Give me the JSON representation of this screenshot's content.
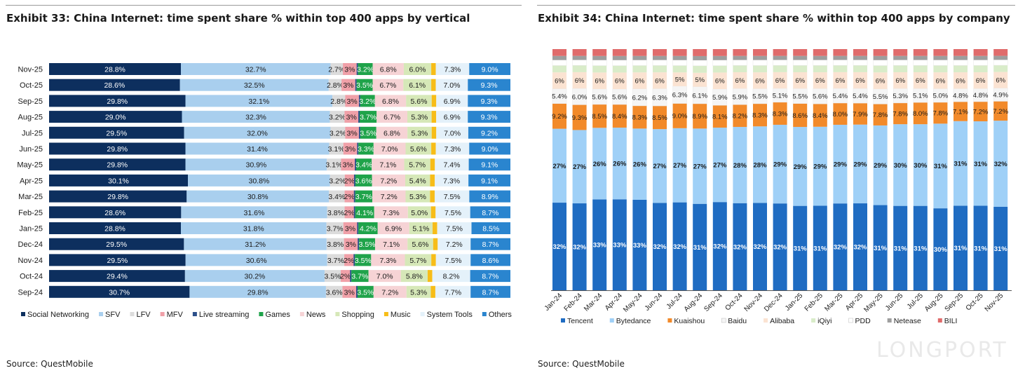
{
  "exhibit33": {
    "title": "Exhibit 33: China Internet: time spent share % within top 400 apps by vertical",
    "source": "Source: QuestMobile"
  },
  "exhibit34": {
    "title": "Exhibit 34: China Internet: time spent share % within top 400 apps by company",
    "source": "Source: QuestMobile"
  },
  "watermark": "LONGPORT",
  "chart_data": [
    {
      "type": "bar",
      "orientation": "horizontal",
      "stacked": true,
      "title": "",
      "xlabel": "",
      "ylabel": "",
      "xlim": [
        0,
        100
      ],
      "grid": false,
      "legend": "bottom",
      "categories": [
        "Nov-25",
        "Oct-25",
        "Sep-25",
        "Aug-25",
        "Jul-25",
        "Jun-25",
        "May-25",
        "Apr-25",
        "Mar-25",
        "Feb-25",
        "Jan-25",
        "Dec-24",
        "Nov-24",
        "Oct-24",
        "Sep-24"
      ],
      "series": [
        {
          "name": "Social Networking",
          "color": "#0d2f5e",
          "label_color": "#ffffff",
          "values": [
            28.8,
            28.6,
            29.8,
            29.0,
            29.5,
            29.8,
            29.8,
            30.1,
            29.8,
            28.6,
            28.8,
            29.5,
            29.5,
            29.4,
            30.7
          ],
          "labels": [
            "28.8%",
            "28.6%",
            "29.8%",
            "29.0%",
            "29.5%",
            "29.8%",
            "29.8%",
            "30.1%",
            "29.8%",
            "28.6%",
            "28.8%",
            "29.5%",
            "29.5%",
            "29.4%",
            "30.7%"
          ]
        },
        {
          "name": "SFV",
          "color": "#a9cfee",
          "label_color": "#1a1a1a",
          "values": [
            32.7,
            32.5,
            32.1,
            32.3,
            32.0,
            31.4,
            30.9,
            30.8,
            30.8,
            31.6,
            31.8,
            31.2,
            30.6,
            30.2,
            29.8
          ],
          "labels": [
            "32.7%",
            "32.5%",
            "32.1%",
            "32.3%",
            "32.0%",
            "31.4%",
            "30.9%",
            "30.8%",
            "30.8%",
            "31.6%",
            "31.8%",
            "31.2%",
            "30.6%",
            "30.2%",
            "29.8%"
          ]
        },
        {
          "name": "LFV",
          "color": "#dcdcdc",
          "label_color": "#1a1a1a",
          "values": [
            2.7,
            2.8,
            2.8,
            3.2,
            3.2,
            3.1,
            3.1,
            3.2,
            3.4,
            3.8,
            3.7,
            3.8,
            3.7,
            3.5,
            3.6
          ],
          "labels": [
            "2.7%",
            "2.8%",
            "2.8%",
            "3.2%",
            "3.2%",
            "3.1%",
            "3.1%",
            "3.2%",
            "3.4%",
            "3.8%",
            "3.7%",
            "3.8%",
            "3.7%",
            "3.5%",
            "3.6%"
          ]
        },
        {
          "name": "MFV",
          "color": "#f0a0a8",
          "label_color": "#1a1a1a",
          "values": [
            3,
            3,
            3,
            3,
            3,
            3,
            3,
            2,
            2,
            2,
            3,
            3,
            2,
            2,
            3
          ],
          "labels": [
            "3%",
            "3%",
            "3%",
            "3%",
            "3%",
            "3%",
            "3%",
            "2%",
            "2%",
            "2%",
            "3%",
            "3%",
            "2%",
            "2%",
            "3%"
          ]
        },
        {
          "name": "Live streaming",
          "color": "#2b4f8a",
          "label_color": "#ffffff",
          "values": [
            0.3,
            0.3,
            0.3,
            0.3,
            0.3,
            0.3,
            0.3,
            0.3,
            0.3,
            0.3,
            0.3,
            0.3,
            0.3,
            0.3,
            0.3
          ],
          "labels": [
            "",
            "",
            "",
            "",
            "",
            "",
            "",
            "",
            "",
            "",
            "",
            "",
            "",
            "",
            ""
          ]
        },
        {
          "name": "Games",
          "color": "#1fa34a",
          "label_color": "#ffffff",
          "values": [
            3.2,
            3.5,
            3.2,
            3.7,
            3.5,
            3.3,
            3.4,
            3.6,
            3.7,
            4.1,
            4.2,
            3.5,
            3.5,
            3.7,
            3.5
          ],
          "labels": [
            "3.2%",
            "3.5%",
            "3.2%",
            "3.7%",
            "3.5%",
            "3.3%",
            "3.4%",
            "3.6%",
            "3.7%",
            "4.1%",
            "4.2%",
            "3.5%",
            "3.5%",
            "3.7%",
            "3.5%"
          ]
        },
        {
          "name": "News",
          "color": "#f6d3d5",
          "label_color": "#1a1a1a",
          "values": [
            6.8,
            6.7,
            6.8,
            6.7,
            6.8,
            7.0,
            7.1,
            7.2,
            7.2,
            7.3,
            6.9,
            7.1,
            7.3,
            7.0,
            7.2
          ],
          "labels": [
            "6.8%",
            "6.7%",
            "6.8%",
            "6.7%",
            "6.8%",
            "7.0%",
            "7.1%",
            "7.2%",
            "7.2%",
            "7.3%",
            "6.9%",
            "7.1%",
            "7.3%",
            "7.0%",
            "7.2%"
          ]
        },
        {
          "name": "Shopping",
          "color": "#d6e8b8",
          "label_color": "#1a1a1a",
          "values": [
            6.0,
            6.1,
            5.6,
            5.3,
            5.3,
            5.6,
            5.7,
            5.4,
            5.3,
            5.0,
            5.1,
            5.6,
            5.7,
            5.8,
            5.3
          ],
          "labels": [
            "6.0%",
            "6.1%",
            "5.6%",
            "5.3%",
            "5.3%",
            "5.6%",
            "5.7%",
            "5.4%",
            "5.3%",
            "5.0%",
            "5.1%",
            "5.6%",
            "5.7%",
            "5.8%",
            "5.3%"
          ]
        },
        {
          "name": "Music",
          "color": "#f7bd18",
          "label_color": "#1a1a1a",
          "values": [
            1,
            1,
            1,
            1,
            1,
            1,
            1,
            1,
            1,
            1,
            1,
            1,
            1,
            1,
            1
          ],
          "labels": [
            "",
            "",
            "",
            "",
            "",
            "",
            "",
            "",
            "",
            "",
            "",
            "",
            "",
            "",
            ""
          ]
        },
        {
          "name": "System Tools",
          "color": "#e4f1fa",
          "label_color": "#1a1a1a",
          "values": [
            7.3,
            7.0,
            6.9,
            6.9,
            7.0,
            7.3,
            7.4,
            7.3,
            7.5,
            7.5,
            7.5,
            7.2,
            7.5,
            8.2,
            7.7
          ],
          "labels": [
            "7.3%",
            "7.0%",
            "6.9%",
            "6.9%",
            "7.0%",
            "7.3%",
            "7.4%",
            "7.3%",
            "7.5%",
            "7.5%",
            "7.5%",
            "7.2%",
            "7.5%",
            "8.2%",
            "7.7%"
          ]
        },
        {
          "name": "Others",
          "color": "#2a85cf",
          "label_color": "#ffffff",
          "values": [
            9.0,
            9.3,
            9.3,
            9.3,
            9.2,
            9.0,
            9.1,
            9.1,
            8.9,
            8.7,
            8.5,
            8.7,
            8.6,
            8.7,
            8.7
          ],
          "labels": [
            "9.0%",
            "9.3%",
            "9.3%",
            "9.3%",
            "9.2%",
            "9.0%",
            "9.1%",
            "9.1%",
            "8.9%",
            "8.7%",
            "8.5%",
            "8.7%",
            "8.6%",
            "8.7%",
            "8.7%"
          ]
        }
      ]
    },
    {
      "type": "bar",
      "orientation": "vertical",
      "stacked": true,
      "title": "",
      "xlabel": "",
      "ylabel": "",
      "ylim": [
        0,
        100
      ],
      "grid": false,
      "legend": "bottom",
      "categories": [
        "Jan-24",
        "Feb-24",
        "Mar-24",
        "Apr-24",
        "May-24",
        "Jun-24",
        "Jul-24",
        "Aug-24",
        "Sep-24",
        "Oct-24",
        "Nov-24",
        "Dec-24",
        "Jan-25",
        "Feb-25",
        "Mar-25",
        "Apr-25",
        "May-25",
        "Jun-25",
        "Jul-25",
        "Aug-25",
        "Sep-25",
        "Oct-25",
        "Nov-25"
      ],
      "series": [
        {
          "name": "Tencent",
          "color": "#1f6cc2",
          "label_color": "#ffffff",
          "values": [
            32,
            32,
            33,
            33,
            33,
            32,
            32,
            31,
            32,
            32,
            32,
            32,
            31,
            31,
            32,
            32,
            31,
            31,
            31,
            30,
            31,
            31,
            31
          ],
          "labels": [
            "32%",
            "32%",
            "33%",
            "33%",
            "33%",
            "32%",
            "32%",
            "31%",
            "32%",
            "32%",
            "32%",
            "32%",
            "31%",
            "31%",
            "32%",
            "32%",
            "31%",
            "31%",
            "31%",
            "30%",
            "31%",
            "31%",
            "31%"
          ]
        },
        {
          "name": "Bytedance",
          "color": "#9fd0f7",
          "label_color": "#1a1a1a",
          "values": [
            27,
            27,
            26,
            26,
            26,
            27,
            27,
            27,
            27,
            28,
            28,
            29,
            29,
            29,
            29,
            29,
            29,
            30,
            30,
            31,
            31,
            31,
            32
          ],
          "labels": [
            "27%",
            "27%",
            "26%",
            "26%",
            "26%",
            "27%",
            "27%",
            "27%",
            "27%",
            "28%",
            "28%",
            "29%",
            "29%",
            "29%",
            "29%",
            "29%",
            "29%",
            "30%",
            "30%",
            "31%",
            "31%",
            "31%",
            "32%"
          ]
        },
        {
          "name": "Kuaishou",
          "color": "#f28a2a",
          "label_color": "#1a1a1a",
          "values": [
            9.2,
            9.3,
            8.5,
            8.4,
            8.3,
            8.5,
            9.0,
            8.9,
            8.1,
            8.2,
            8.3,
            8.3,
            8.6,
            8.4,
            8.0,
            7.9,
            7.8,
            7.8,
            8.0,
            7.8,
            7.1,
            7.2,
            7.2
          ],
          "labels": [
            "9.2%",
            "9.3%",
            "8.5%",
            "8.4%",
            "8.3%",
            "8.5%",
            "9.0%",
            "8.9%",
            "8.1%",
            "8.2%",
            "8.3%",
            "8.3%",
            "8.6%",
            "8.4%",
            "8.0%",
            "7.9%",
            "7.8%",
            "7.8%",
            "8.0%",
            "7.8%",
            "7.1%",
            "7.2%",
            "7.2%"
          ]
        },
        {
          "name": "Baidu",
          "color": "#f5f5f5",
          "label_color": "#1a1a1a",
          "values": [
            5.4,
            6.0,
            5.6,
            5.6,
            6.2,
            6.3,
            6.3,
            6.1,
            5.9,
            5.9,
            5.5,
            5.1,
            5.5,
            5.6,
            5.4,
            5.4,
            5.5,
            5.3,
            5.1,
            5.0,
            4.8,
            4.8,
            4.9
          ],
          "labels": [
            "5.4%",
            "6.0%",
            "5.6%",
            "5.6%",
            "6.2%",
            "6.3%",
            "6.3%",
            "6.1%",
            "5.9%",
            "5.9%",
            "5.5%",
            "5.1%",
            "5.5%",
            "5.6%",
            "5.4%",
            "5.4%",
            "5.5%",
            "5.3%",
            "5.1%",
            "5.0%",
            "4.8%",
            "4.8%",
            "4.9%"
          ]
        },
        {
          "name": "Alibaba",
          "color": "#fbe3d2",
          "label_color": "#1a1a1a",
          "values": [
            6,
            6,
            6,
            6,
            6,
            6,
            5,
            5,
            6,
            6,
            6,
            6,
            6,
            6,
            6,
            6,
            6,
            6,
            6,
            6,
            6,
            6,
            6
          ],
          "labels": [
            "6%",
            "6%",
            "6%",
            "6%",
            "6%",
            "6%",
            "5%",
            "5%",
            "6%",
            "6%",
            "6%",
            "6%",
            "6%",
            "6%",
            "6%",
            "6%",
            "6%",
            "6%",
            "6%",
            "6%",
            "6%",
            "6%",
            "6%"
          ]
        },
        {
          "name": "iQiyi",
          "color": "#d9ecc9",
          "label_color": "#1a1a1a",
          "values": [
            2.5,
            2.5,
            2.5,
            2.5,
            2.5,
            2.5,
            2.5,
            2.5,
            2.5,
            2.5,
            2.5,
            2.5,
            2.5,
            2.5,
            2.5,
            2.5,
            2.5,
            2.5,
            2.5,
            2.5,
            2.5,
            2.5,
            2.5
          ],
          "labels": []
        },
        {
          "name": "PDD",
          "color": "#ffffff",
          "label_color": "#1a1a1a",
          "values": [
            2,
            2,
            2,
            2,
            2,
            2,
            2,
            2,
            2,
            2,
            2,
            2,
            2,
            2,
            2,
            2,
            2,
            2,
            2,
            2,
            2,
            2,
            2
          ],
          "labels": []
        },
        {
          "name": "Netease",
          "color": "#9e9e9e",
          "label_color": "#1a1a1a",
          "values": [
            1.5,
            1.5,
            1.5,
            1.5,
            1.5,
            1.5,
            1.5,
            1.5,
            1.5,
            1.5,
            1.5,
            1.5,
            1.5,
            1.5,
            1.5,
            1.5,
            1.5,
            1.5,
            1.5,
            1.5,
            1.5,
            1.5,
            1.5
          ],
          "labels": []
        },
        {
          "name": "BILI",
          "color": "#e06b6b",
          "label_color": "#1a1a1a",
          "values": [
            2.5,
            2.5,
            2.5,
            2.5,
            2.5,
            2.5,
            2.5,
            2.5,
            2.5,
            2.5,
            2.5,
            2.5,
            2.5,
            2.5,
            2.5,
            2.5,
            2.5,
            2.5,
            2.5,
            2.5,
            2.5,
            2.5,
            2.5
          ],
          "labels": []
        }
      ]
    }
  ]
}
